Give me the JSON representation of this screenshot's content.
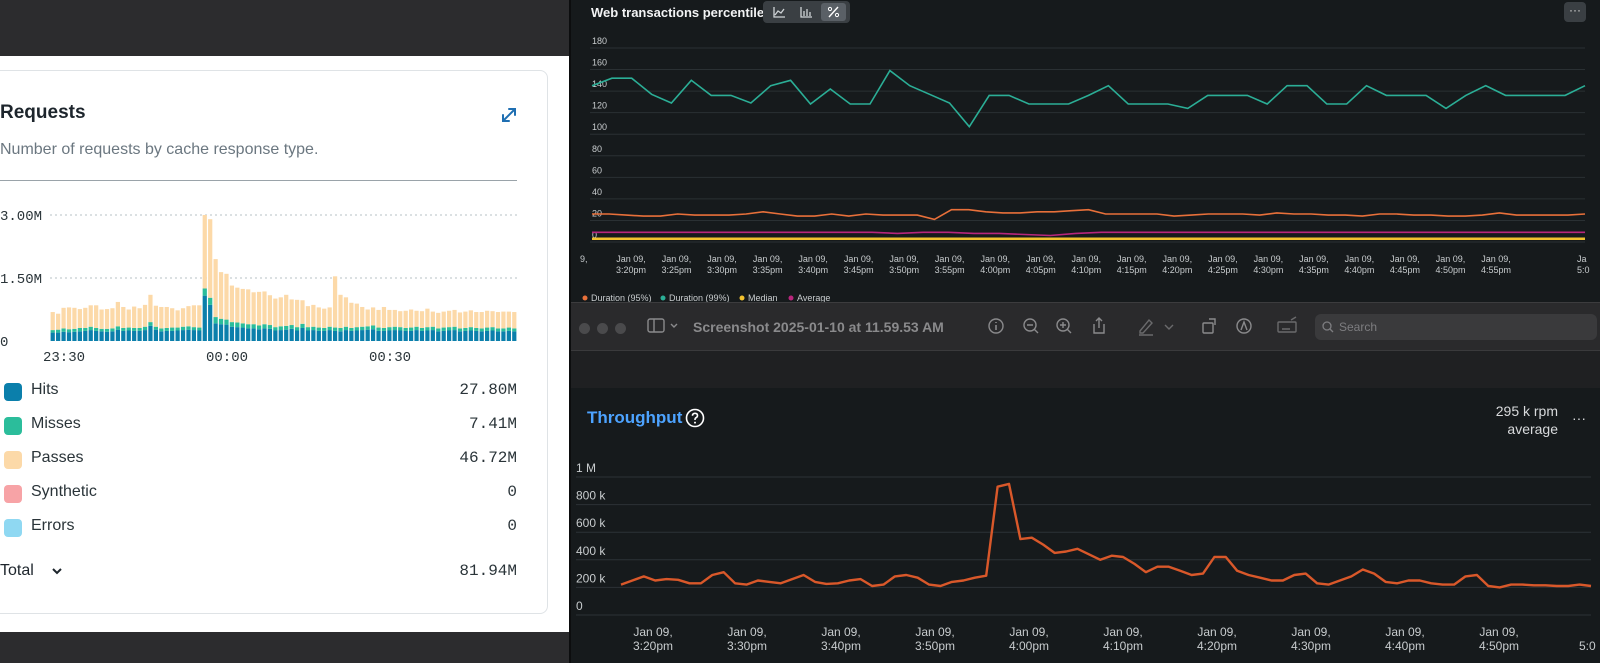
{
  "requests_card": {
    "title": "Requests",
    "subtitle": "Number of requests by cache response type.",
    "legend": [
      {
        "label": "Hits",
        "value": "27.80M",
        "color": "#0b7fab"
      },
      {
        "label": "Misses",
        "value": "7.41M",
        "color": "#2bbd9b"
      },
      {
        "label": "Passes",
        "value": "46.72M",
        "color": "#fcd9a8"
      },
      {
        "label": "Synthetic",
        "value": "0",
        "color": "#f7a3a6"
      },
      {
        "label": "Errors",
        "value": "0",
        "color": "#8fd8f2"
      }
    ],
    "total": {
      "label": "Total",
      "value": "81.94M"
    }
  },
  "web_transactions": {
    "title": "Web transactions percentile",
    "more_label": "···"
  },
  "preview_toolbar": {
    "title": "Screenshot 2025-01-10 at 11.59.53 AM",
    "search_placeholder": "Search"
  },
  "throughput_panel": {
    "title": "Throughput",
    "stat_value": "295 k rpm",
    "stat_label": "average",
    "more_label": "···"
  },
  "chart_data": [
    {
      "type": "bar",
      "title": "Requests",
      "stacked": true,
      "x_ticks": [
        "23:30",
        "00:00",
        "00:30"
      ],
      "y_ticks": [
        "3.00M",
        "1.50M",
        "0"
      ],
      "ylim": [
        0,
        3000000
      ],
      "series": [
        {
          "name": "Hits",
          "color": "#0b7fab",
          "values": [
            200000,
            200000,
            220000,
            210000,
            220000,
            230000,
            240000,
            260000,
            240000,
            230000,
            220000,
            230000,
            270000,
            240000,
            250000,
            240000,
            240000,
            260000,
            360000,
            270000,
            230000,
            240000,
            240000,
            250000,
            260000,
            270000,
            260000,
            250000,
            1080000,
            860000,
            420000,
            400000,
            390000,
            340000,
            330000,
            320000,
            300000,
            300000,
            280000,
            300000,
            290000,
            250000,
            260000,
            270000,
            290000,
            250000,
            310000,
            250000,
            260000,
            240000,
            240000,
            260000,
            240000,
            230000,
            260000,
            240000,
            250000,
            260000,
            270000,
            280000,
            240000,
            240000,
            250000,
            260000,
            250000,
            240000,
            240000,
            260000,
            240000,
            250000,
            260000,
            230000,
            240000,
            250000,
            260000,
            230000,
            240000,
            250000,
            240000,
            230000,
            240000,
            250000,
            230000,
            230000,
            240000,
            230000
          ]
        },
        {
          "name": "Misses",
          "color": "#2bbd9b",
          "values": [
            60000,
            70000,
            80000,
            70000,
            70000,
            80000,
            70000,
            80000,
            70000,
            60000,
            70000,
            70000,
            80000,
            70000,
            70000,
            70000,
            70000,
            80000,
            90000,
            70000,
            70000,
            70000,
            80000,
            70000,
            80000,
            80000,
            70000,
            70000,
            170000,
            170000,
            150000,
            130000,
            120000,
            110000,
            110000,
            100000,
            100000,
            100000,
            90000,
            100000,
            90000,
            80000,
            90000,
            90000,
            90000,
            80000,
            100000,
            80000,
            80000,
            80000,
            70000,
            80000,
            80000,
            80000,
            80000,
            70000,
            80000,
            80000,
            80000,
            90000,
            80000,
            70000,
            80000,
            80000,
            80000,
            70000,
            80000,
            80000,
            70000,
            80000,
            80000,
            70000,
            80000,
            80000,
            80000,
            70000,
            70000,
            80000,
            70000,
            70000,
            80000,
            80000,
            70000,
            70000,
            80000,
            70000
          ]
        },
        {
          "name": "Passes",
          "color": "#fcd9a8",
          "values": [
            430000,
            380000,
            490000,
            520000,
            500000,
            450000,
            480000,
            510000,
            540000,
            460000,
            470000,
            480000,
            580000,
            500000,
            430000,
            510000,
            470000,
            520000,
            650000,
            500000,
            510000,
            500000,
            460000,
            410000,
            440000,
            480000,
            520000,
            530000,
            1750000,
            1870000,
            1380000,
            1110000,
            1090000,
            870000,
            830000,
            820000,
            830000,
            760000,
            800000,
            780000,
            710000,
            680000,
            690000,
            740000,
            610000,
            650000,
            560000,
            500000,
            520000,
            480000,
            460000,
            460000,
            1220000,
            790000,
            700000,
            600000,
            560000,
            470000,
            400000,
            430000,
            420000,
            500000,
            410000,
            400000,
            380000,
            410000,
            430000,
            380000,
            400000,
            440000,
            360000,
            370000,
            380000,
            390000,
            400000,
            380000,
            390000,
            400000,
            380000,
            390000,
            400000,
            380000,
            390000,
            400000,
            380000,
            390000
          ]
        },
        {
          "name": "Synthetic",
          "color": "#f7a3a6",
          "values": []
        },
        {
          "name": "Errors",
          "color": "#8fd8f2",
          "values": []
        }
      ]
    },
    {
      "type": "line",
      "title": "Web transactions percentile",
      "x_ticks": [
        "Jan 09, 3:20pm",
        "Jan 09, 3:25pm",
        "Jan 09, 3:30pm",
        "Jan 09, 3:35pm",
        "Jan 09, 3:40pm",
        "Jan 09, 3:45pm",
        "Jan 09, 3:50pm",
        "Jan 09, 3:55pm",
        "Jan 09, 4:00pm",
        "Jan 09, 4:05pm",
        "Jan 09, 4:10pm",
        "Jan 09, 4:15pm",
        "Jan 09, 4:20pm",
        "Jan 09, 4:25pm",
        "Jan 09, 4:30pm",
        "Jan 09, 4:35pm",
        "Jan 09, 4:40pm",
        "Jan 09, 4:45pm",
        "Jan 09, 4:50pm",
        "Jan 09, 4:55pm"
      ],
      "edge_ticks": [
        "9,",
        "Ja 5:0"
      ],
      "y_ticks": [
        180,
        160,
        140,
        120,
        100,
        80,
        60,
        40,
        20,
        0
      ],
      "ylim": [
        0,
        180
      ],
      "grid": true,
      "legend_position": "bottom-left",
      "series": [
        {
          "name": "Duration (95%)",
          "color": "#e8703a",
          "values": [
            26,
            26,
            25,
            24,
            24,
            26,
            25,
            25,
            25,
            26,
            28,
            26,
            24,
            24,
            26,
            24,
            26,
            25,
            25,
            25,
            21,
            30,
            30,
            28,
            27,
            27,
            28,
            28,
            29,
            30,
            26,
            26,
            26,
            26,
            24,
            25,
            26,
            26,
            26,
            25,
            27,
            26,
            26,
            25,
            25,
            24,
            26,
            26,
            25,
            25,
            24,
            24,
            25,
            27,
            25,
            25,
            25,
            25,
            26
          ]
        },
        {
          "name": "Duration (99%)",
          "color": "#2bae96",
          "values": [
            145,
            152,
            152,
            137,
            129,
            150,
            136,
            136,
            129,
            145,
            150,
            128,
            142,
            128,
            128,
            159,
            145,
            137,
            129,
            107,
            136,
            136,
            128,
            128,
            128,
            136,
            145,
            128,
            128,
            128,
            124,
            136,
            136,
            136,
            128,
            145,
            145,
            128,
            128,
            145,
            136,
            136,
            136,
            124,
            136,
            145,
            136,
            136,
            136,
            136,
            145
          ]
        },
        {
          "name": "Median",
          "color": "#f2c12e",
          "values": [
            3,
            3,
            3,
            3,
            3,
            3,
            3,
            3,
            3,
            3,
            3,
            3,
            3,
            3,
            3,
            3,
            3,
            3,
            3,
            3,
            3,
            3,
            3,
            3,
            3,
            3,
            3,
            3,
            3,
            3,
            3,
            3,
            3,
            3,
            3,
            3,
            3,
            3,
            3,
            3
          ]
        },
        {
          "name": "Average",
          "color": "#b8267c",
          "values": [
            9,
            9,
            9,
            9,
            9,
            9,
            9,
            9,
            9,
            9,
            9,
            9,
            8,
            9,
            9,
            8,
            8,
            7,
            6,
            8,
            9,
            9,
            9,
            9,
            9,
            9,
            9,
            9,
            9,
            9,
            9,
            9,
            9,
            9,
            9,
            9,
            9,
            9,
            9,
            9
          ]
        }
      ]
    },
    {
      "type": "line",
      "title": "Throughput",
      "x_ticks": [
        "Jan 09, 3:20pm",
        "Jan 09, 3:30pm",
        "Jan 09, 3:40pm",
        "Jan 09, 3:50pm",
        "Jan 09, 4:00pm",
        "Jan 09, 4:10pm",
        "Jan 09, 4:20pm",
        "Jan 09, 4:30pm",
        "Jan 09, 4:40pm",
        "Jan 09, 4:50pm"
      ],
      "edge_ticks": [
        "5:0"
      ],
      "y_ticks": [
        "1 M",
        "800 k",
        "600 k",
        "400 k",
        "200 k",
        "0"
      ],
      "ylim": [
        0,
        1000000
      ],
      "grid": true,
      "series": [
        {
          "name": "Throughput",
          "color": "#d9582a",
          "values": [
            220000,
            250000,
            280000,
            250000,
            260000,
            255000,
            230000,
            230000,
            290000,
            310000,
            230000,
            220000,
            250000,
            240000,
            230000,
            260000,
            290000,
            240000,
            225000,
            230000,
            250000,
            260000,
            210000,
            220000,
            280000,
            290000,
            270000,
            220000,
            210000,
            240000,
            250000,
            270000,
            285000,
            930000,
            950000,
            550000,
            560000,
            510000,
            450000,
            460000,
            480000,
            440000,
            400000,
            430000,
            420000,
            370000,
            310000,
            350000,
            350000,
            320000,
            290000,
            300000,
            420000,
            420000,
            320000,
            290000,
            270000,
            250000,
            250000,
            290000,
            300000,
            230000,
            220000,
            250000,
            280000,
            330000,
            300000,
            240000,
            230000,
            250000,
            250000,
            230000,
            220000,
            220000,
            280000,
            290000,
            210000,
            200000,
            220000,
            220000,
            215000,
            215000,
            210000,
            210000,
            220000,
            210000
          ]
        }
      ]
    }
  ]
}
